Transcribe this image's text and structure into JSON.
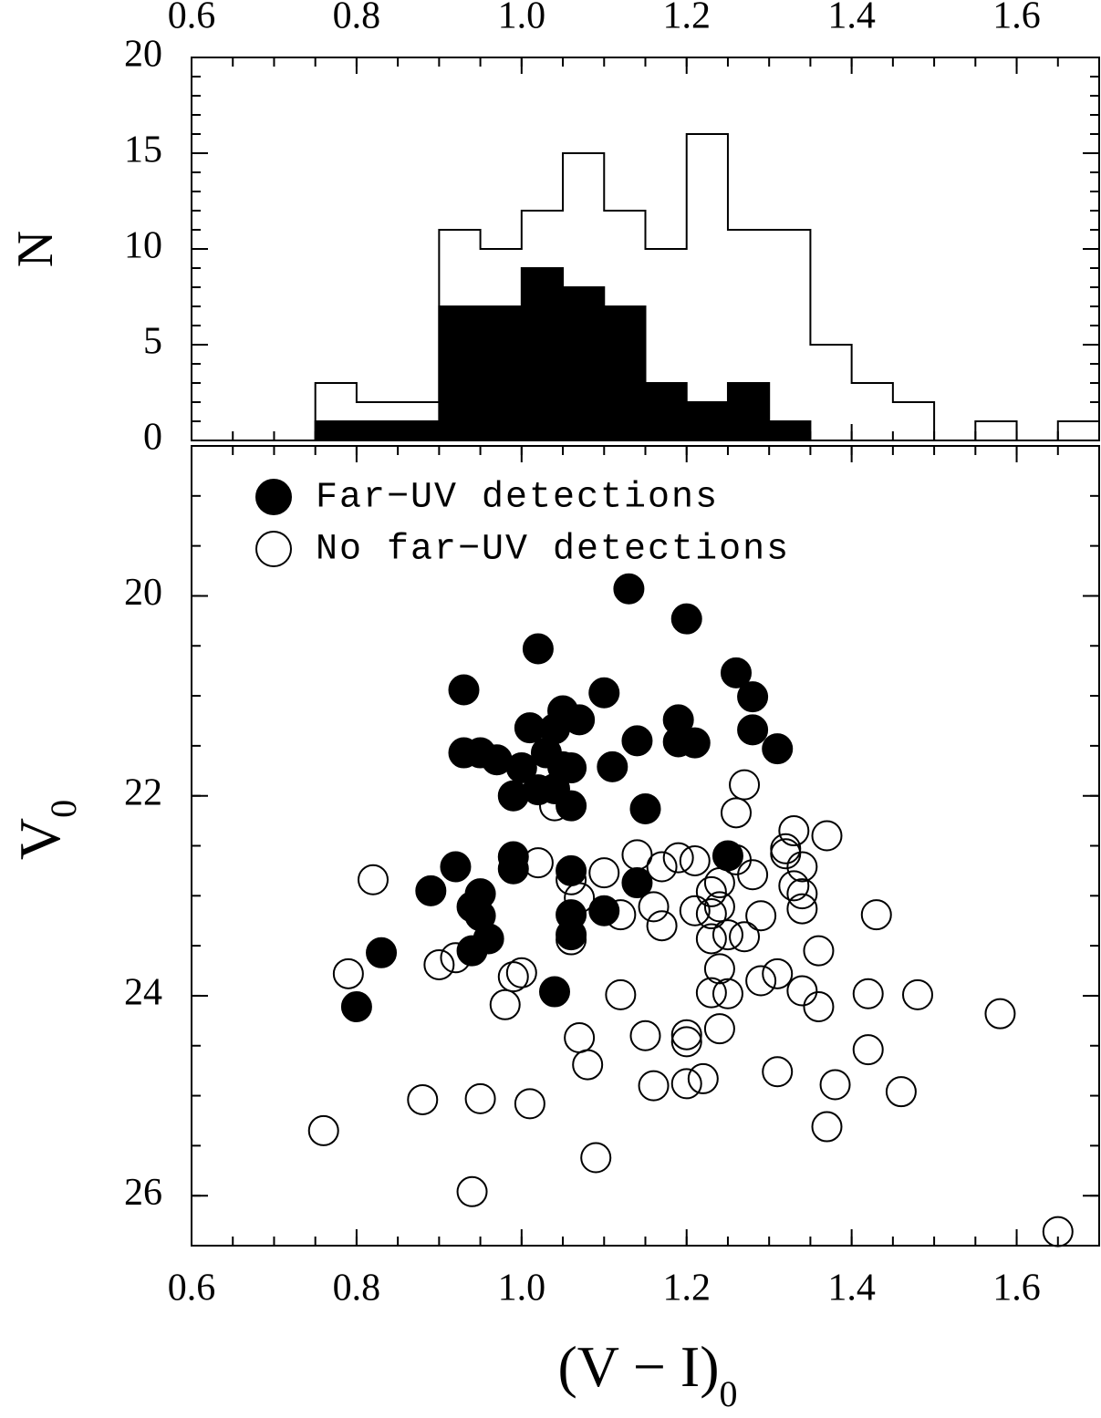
{
  "chart_data": [
    {
      "type": "histogram",
      "y_label": "N",
      "bins": [
        0.75,
        0.8,
        0.85,
        0.9,
        0.95,
        1.0,
        1.05,
        1.1,
        1.15,
        1.2,
        1.25,
        1.3,
        1.35,
        1.4,
        1.45,
        1.5,
        1.55,
        1.6,
        1.65,
        1.7
      ],
      "series": [
        {
          "color": "#000000",
          "fill": "none",
          "values": [
            3,
            2,
            2,
            11,
            10,
            12,
            15,
            12,
            10,
            16,
            11,
            11,
            5,
            3,
            2,
            0,
            1,
            0,
            1
          ]
        },
        {
          "color": "#000000",
          "fill": "#000000",
          "values": [
            1,
            1,
            1,
            7,
            7,
            9,
            8,
            7,
            3,
            2,
            3,
            1,
            0,
            0,
            0,
            0,
            0,
            0,
            0
          ]
        }
      ],
      "xlim": [
        0.6,
        1.7
      ],
      "xticks": [
        0.6,
        0.8,
        {
          "value": 1.0,
          "label": "1.0"
        },
        1.2,
        1.4,
        1.6
      ],
      "xtick_labels": "top",
      "ylim": [
        0,
        20
      ],
      "yticks": [
        0,
        5,
        10,
        15,
        20
      ]
    },
    {
      "type": "scatter",
      "x_label": "(V − I)",
      "x_label_sub": "0",
      "y_label": "V",
      "y_label_sub": "0",
      "legend": "upper left",
      "series": [
        {
          "name": "Far−UV detections",
          "marker": "filled",
          "color": "#000000",
          "x": [
            1.13,
            1.2,
            1.02,
            1.26,
            0.93,
            1.1,
            1.28,
            1.01,
            1.05,
            1.07,
            1.04,
            1.19,
            1.28,
            0.93,
            0.95,
            0.97,
            1.14,
            1.19,
            1.21,
            1.31,
            1.0,
            1.03,
            1.05,
            1.06,
            1.11,
            1.02,
            1.04,
            1.06,
            0.99,
            1.15,
            0.99,
            0.99,
            0.92,
            1.06,
            1.25,
            1.14,
            0.89,
            0.95,
            0.94,
            0.95,
            1.06,
            1.1,
            0.96,
            1.06,
            0.94,
            0.83,
            1.04,
            0.8
          ],
          "y": [
            19.93,
            20.23,
            20.53,
            20.77,
            20.94,
            20.97,
            21.01,
            21.32,
            21.15,
            21.24,
            21.33,
            21.24,
            21.34,
            21.57,
            21.57,
            21.64,
            21.45,
            21.46,
            21.47,
            21.53,
            21.72,
            21.57,
            21.71,
            21.72,
            21.71,
            21.94,
            21.93,
            22.1,
            22.0,
            22.13,
            22.61,
            22.73,
            22.71,
            22.75,
            22.6,
            22.87,
            22.95,
            22.98,
            23.11,
            23.2,
            23.19,
            23.15,
            23.43,
            23.39,
            23.55,
            23.57,
            23.96,
            24.11
          ]
        },
        {
          "name": "No far−UV detections",
          "marker": "open",
          "color": "#000000",
          "x": [
            1.27,
            1.26,
            1.04,
            1.33,
            1.37,
            1.32,
            1.32,
            1.14,
            1.02,
            1.19,
            1.21,
            1.17,
            1.26,
            1.34,
            0.82,
            1.1,
            1.06,
            1.28,
            1.24,
            1.07,
            1.23,
            1.33,
            1.34,
            1.24,
            1.16,
            1.21,
            1.34,
            1.12,
            1.29,
            1.23,
            1.43,
            1.17,
            1.06,
            1.23,
            1.25,
            1.27,
            1.36,
            0.9,
            0.92,
            1.0,
            0.99,
            0.79,
            1.24,
            1.31,
            1.29,
            1.34,
            1.12,
            1.23,
            1.25,
            1.42,
            1.48,
            1.36,
            0.98,
            1.58,
            1.07,
            1.15,
            1.2,
            1.2,
            1.24,
            1.08,
            1.42,
            1.31,
            1.16,
            1.22,
            1.2,
            1.38,
            1.46,
            0.88,
            0.95,
            1.01,
            0.76,
            1.37,
            1.09,
            0.94,
            1.65
          ],
          "y": [
            21.89,
            22.17,
            22.1,
            22.35,
            22.4,
            22.53,
            22.58,
            22.59,
            22.67,
            22.62,
            22.65,
            22.71,
            22.64,
            22.71,
            22.84,
            22.77,
            22.84,
            22.79,
            22.87,
            23.02,
            22.96,
            22.9,
            22.98,
            23.11,
            23.11,
            23.15,
            23.13,
            23.19,
            23.2,
            23.18,
            23.19,
            23.3,
            23.44,
            23.43,
            23.39,
            23.41,
            23.55,
            23.69,
            23.62,
            23.77,
            23.81,
            23.78,
            23.73,
            23.78,
            23.85,
            23.95,
            23.99,
            23.97,
            23.98,
            23.98,
            23.99,
            24.11,
            24.09,
            24.18,
            24.42,
            24.4,
            24.39,
            24.46,
            24.33,
            24.69,
            24.54,
            24.76,
            24.9,
            24.83,
            24.88,
            24.89,
            24.96,
            25.04,
            25.03,
            25.08,
            25.35,
            25.31,
            25.62,
            25.96,
            26.36
          ]
        }
      ],
      "xlim": [
        0.6,
        1.7
      ],
      "xticks": [
        0.6,
        0.8,
        {
          "value": 1.0,
          "label": "1.0"
        },
        1.2,
        1.4,
        1.6
      ],
      "xtick_labels": "bottom",
      "ylim": [
        26.5,
        18.5
      ],
      "yticks": [
        20,
        22,
        24,
        26
      ]
    }
  ]
}
